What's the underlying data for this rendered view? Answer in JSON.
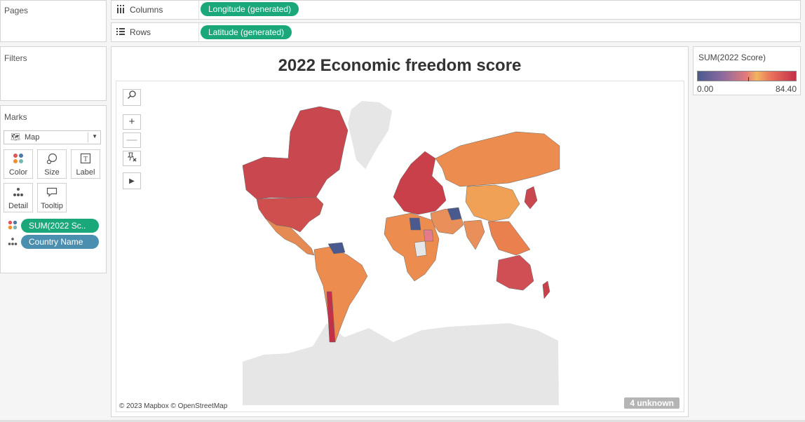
{
  "panels": {
    "pages": "Pages",
    "filters": "Filters",
    "marks": "Marks"
  },
  "shelves": {
    "columns": {
      "label": "Columns",
      "icon": "columns-icon",
      "pill": "Longitude (generated)"
    },
    "rows": {
      "label": "Rows",
      "icon": "rows-icon",
      "pill": "Latitude (generated)"
    }
  },
  "marks": {
    "type": "Map",
    "buttons": [
      "Color",
      "Size",
      "Label",
      "Detail",
      "Tooltip"
    ],
    "fields": [
      {
        "label": "SUM(2022 Sc..",
        "icon": "color-dots-icon"
      },
      {
        "label": "Country Name",
        "icon": "detail-dots-icon"
      }
    ]
  },
  "view": {
    "title": "2022 Economic freedom score",
    "attribution": "© 2023 Mapbox © OpenStreetMap",
    "unknown_badge": "4 unknown",
    "map_tools": [
      "search-icon",
      "zoom-in-icon",
      "zoom-out-icon",
      "pin-map-icon",
      "expand-arrow-icon"
    ]
  },
  "legend": {
    "title": "SUM(2022 Score)",
    "min": "0.00",
    "max": "84.40",
    "colors": [
      "#4a5a8f",
      "#e57a7a",
      "#f0b560",
      "#c3304a"
    ]
  }
}
